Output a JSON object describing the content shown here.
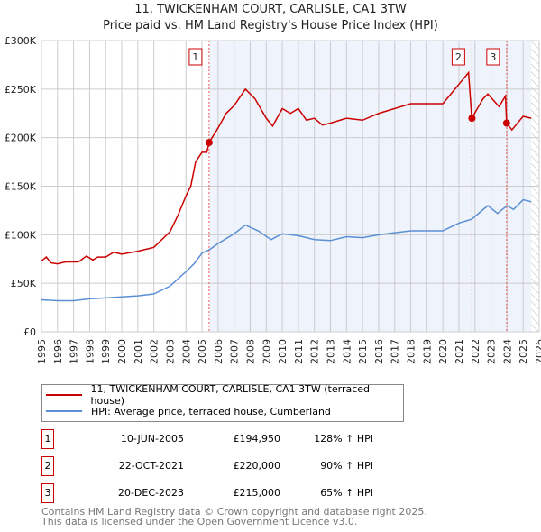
{
  "chart_data": {
    "type": "line",
    "title": "11, TWICKENHAM COURT, CARLISLE, CA1 3TW",
    "subtitle": "Price paid vs. HM Land Registry's House Price Index (HPI)",
    "xlim": [
      1995,
      2026
    ],
    "ylim": [
      0,
      300000
    ],
    "y_ticks": [
      {
        "v": 0,
        "label": "£0"
      },
      {
        "v": 50000,
        "label": "£50K"
      },
      {
        "v": 100000,
        "label": "£100K"
      },
      {
        "v": 150000,
        "label": "£150K"
      },
      {
        "v": 200000,
        "label": "£200K"
      },
      {
        "v": 250000,
        "label": "£250K"
      },
      {
        "v": 300000,
        "label": "£300K"
      }
    ],
    "x_ticks": [
      "1995",
      "1996",
      "1997",
      "1998",
      "1999",
      "2000",
      "2001",
      "2002",
      "2003",
      "2004",
      "2005",
      "2006",
      "2007",
      "2008",
      "2009",
      "2010",
      "2011",
      "2012",
      "2013",
      "2014",
      "2015",
      "2016",
      "2017",
      "2018",
      "2019",
      "2020",
      "2021",
      "2022",
      "2023",
      "2024",
      "2025",
      "2026"
    ],
    "grid": true,
    "series": [
      {
        "name": "11, TWICKENHAM COURT, CARLISLE, CA1 3TW (terraced house)",
        "color": "#cc0000",
        "points": [
          [
            1995,
            73
          ],
          [
            1995.3,
            77
          ],
          [
            1995.6,
            71
          ],
          [
            1996,
            70
          ],
          [
            1996.5,
            72
          ],
          [
            1997.3,
            72
          ],
          [
            1997.8,
            78
          ],
          [
            1998.2,
            74
          ],
          [
            1998.5,
            77
          ],
          [
            1999,
            77
          ],
          [
            1999.5,
            82
          ],
          [
            2000,
            80
          ],
          [
            2001,
            83
          ],
          [
            2002,
            87
          ],
          [
            2002.5,
            95
          ],
          [
            2003,
            103
          ],
          [
            2003.5,
            120
          ],
          [
            2004,
            140
          ],
          [
            2004.3,
            150
          ],
          [
            2004.6,
            175
          ],
          [
            2005,
            185
          ],
          [
            2005.3,
            185
          ],
          [
            2005.44,
            195
          ],
          [
            2006,
            210
          ],
          [
            2006.5,
            225
          ],
          [
            2007,
            233
          ],
          [
            2007.7,
            250
          ],
          [
            2008.3,
            240
          ],
          [
            2009,
            220
          ],
          [
            2009.4,
            212
          ],
          [
            2010,
            230
          ],
          [
            2010.5,
            225
          ],
          [
            2011,
            230
          ],
          [
            2011.5,
            218
          ],
          [
            2012,
            220
          ],
          [
            2012.5,
            213
          ],
          [
            2013,
            215
          ],
          [
            2014,
            220
          ],
          [
            2015,
            218
          ],
          [
            2016,
            225
          ],
          [
            2017,
            230
          ],
          [
            2018,
            235
          ],
          [
            2019,
            235
          ],
          [
            2020,
            235
          ],
          [
            2021,
            255
          ],
          [
            2021.6,
            267
          ],
          [
            2021.8,
            220
          ],
          [
            2022.5,
            240
          ],
          [
            2022.8,
            245
          ],
          [
            2023.5,
            232
          ],
          [
            2023.9,
            243
          ],
          [
            2023.97,
            215
          ],
          [
            2024.3,
            208
          ],
          [
            2025,
            222
          ],
          [
            2025.5,
            220
          ]
        ]
      },
      {
        "name": "HPI: Average price, terraced house, Cumberland",
        "color": "#5b8fd4",
        "points": [
          [
            1995,
            33
          ],
          [
            1996,
            32
          ],
          [
            1997,
            32
          ],
          [
            1998,
            34
          ],
          [
            1999,
            35
          ],
          [
            2000,
            36
          ],
          [
            2001,
            37
          ],
          [
            2002,
            39
          ],
          [
            2003,
            47
          ],
          [
            2004,
            62
          ],
          [
            2004.5,
            70
          ],
          [
            2005,
            81
          ],
          [
            2005.5,
            85
          ],
          [
            2006,
            91
          ],
          [
            2007,
            101
          ],
          [
            2007.7,
            110
          ],
          [
            2008.5,
            104
          ],
          [
            2009.3,
            95
          ],
          [
            2010,
            101
          ],
          [
            2011,
            99
          ],
          [
            2012,
            95
          ],
          [
            2013,
            94
          ],
          [
            2014,
            98
          ],
          [
            2015,
            97
          ],
          [
            2016,
            100
          ],
          [
            2017,
            102
          ],
          [
            2018,
            104
          ],
          [
            2019,
            104
          ],
          [
            2020,
            104
          ],
          [
            2021,
            112
          ],
          [
            2021.8,
            116
          ],
          [
            2022.8,
            130
          ],
          [
            2023.4,
            122
          ],
          [
            2024,
            130
          ],
          [
            2024.4,
            126
          ],
          [
            2025,
            136
          ],
          [
            2025.5,
            134
          ]
        ]
      }
    ],
    "value_unit_of_points": "thousands GBP",
    "sales": [
      {
        "label": "1",
        "x": 2005.44,
        "value": 194950,
        "date": "10-JUN-2005",
        "price": "£194,950",
        "hpi": "128% ↑ HPI"
      },
      {
        "label": "2",
        "x": 2021.81,
        "value": 220000,
        "date": "22-OCT-2021",
        "price": "£220,000",
        "hpi": "90% ↑ HPI"
      },
      {
        "label": "3",
        "x": 2023.97,
        "value": 215000,
        "date": "20-DEC-2023",
        "price": "£215,000",
        "hpi": "65% ↑ HPI"
      }
    ],
    "data_end": 2025.5,
    "legend_position": "below"
  },
  "footer": {
    "line1": "Contains HM Land Registry data © Crown copyright and database right 2025.",
    "line2": "This data is licensed under the Open Government Licence v3.0."
  }
}
